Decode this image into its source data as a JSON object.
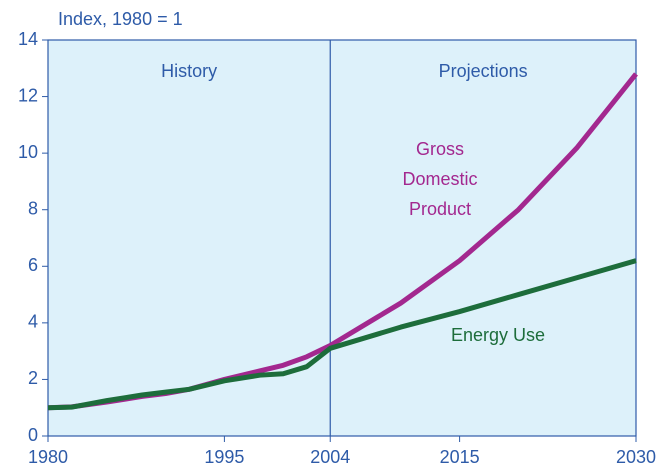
{
  "chart_data": {
    "type": "line",
    "ylabel": "Index, 1980 = 1",
    "regions": [
      {
        "label": "History"
      },
      {
        "label": "Projections"
      }
    ],
    "divider": 2004,
    "xlim": [
      1980,
      2030
    ],
    "xticks": [
      1980,
      1995,
      2004,
      2015,
      2030
    ],
    "ylim": [
      0,
      14
    ],
    "yticks": [
      0,
      2,
      4,
      6,
      8,
      10,
      12,
      14
    ],
    "series": [
      {
        "name": "Gross Domestic Product",
        "color": "#a3288f",
        "x": [
          1980,
          1982,
          1985,
          1988,
          1990,
          1992,
          1995,
          1998,
          2000,
          2002,
          2004,
          2008,
          2010,
          2015,
          2020,
          2025,
          2030
        ],
        "values": [
          1.0,
          1.03,
          1.2,
          1.4,
          1.5,
          1.65,
          2.0,
          2.3,
          2.5,
          2.8,
          3.2,
          4.2,
          4.7,
          6.2,
          8.0,
          10.2,
          12.8
        ]
      },
      {
        "name": "Energy Use",
        "color": "#1d6d3b",
        "x": [
          1980,
          1982,
          1985,
          1988,
          1990,
          1992,
          1995,
          1998,
          2000,
          2002,
          2004,
          2008,
          2010,
          2015,
          2020,
          2025,
          2030
        ],
        "values": [
          1.0,
          1.02,
          1.25,
          1.45,
          1.55,
          1.65,
          1.95,
          2.15,
          2.2,
          2.45,
          3.1,
          3.6,
          3.85,
          4.4,
          5.0,
          5.6,
          6.2
        ]
      }
    ]
  }
}
